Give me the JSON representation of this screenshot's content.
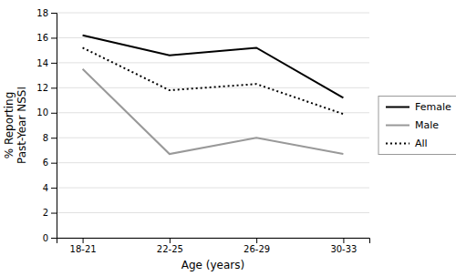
{
  "chart_data": {
    "type": "line",
    "categories": [
      "18-21",
      "22-25",
      "26-29",
      "30-33"
    ],
    "series": [
      {
        "name": "Female",
        "color": "#000000",
        "line_style": "solid",
        "values": [
          16.2,
          14.6,
          15.2,
          11.2
        ]
      },
      {
        "name": "Male",
        "color": "#999999",
        "line_style": "solid",
        "values": [
          13.5,
          6.7,
          8.0,
          6.7
        ]
      },
      {
        "name": "All",
        "color": "#000000",
        "line_style": "dotted",
        "values": [
          15.2,
          11.8,
          12.3,
          9.9
        ]
      }
    ],
    "x_label": "Age (years)",
    "y_label": "% Reporting\nPast-Year NSSI",
    "ylim": [
      0,
      18
    ],
    "yticks": [
      0,
      2,
      4,
      6,
      8,
      10,
      12,
      14,
      16,
      18
    ],
    "grid": true,
    "legend": "right"
  }
}
